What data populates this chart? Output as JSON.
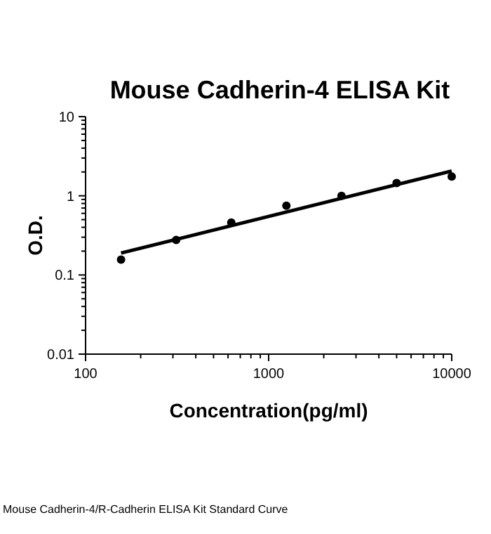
{
  "chart_data": {
    "type": "scatter",
    "title": "Mouse Cadherin-4 ELISA Kit",
    "xlabel": "Concentration(pg/ml)",
    "ylabel": "O.D.",
    "log": "xy",
    "grid": false,
    "marker": "circle",
    "xlim": [
      100,
      10000
    ],
    "ylim": [
      0.01,
      10
    ],
    "xticks": [
      100,
      {
        "value": 200,
        "label": null
      },
      {
        "value": 300,
        "label": null
      },
      {
        "value": 400,
        "label": null
      },
      {
        "value": 500,
        "label": null
      },
      {
        "value": 600,
        "label": null
      },
      {
        "value": 700,
        "label": null
      },
      {
        "value": 800,
        "label": null
      },
      {
        "value": 900,
        "label": null
      },
      1000,
      {
        "value": 2000,
        "label": null
      },
      {
        "value": 3000,
        "label": null
      },
      {
        "value": 4000,
        "label": null
      },
      {
        "value": 5000,
        "label": null
      },
      {
        "value": 6000,
        "label": null
      },
      {
        "value": 7000,
        "label": null
      },
      {
        "value": 8000,
        "label": null
      },
      {
        "value": 9000,
        "label": null
      },
      10000
    ],
    "yticks": [
      0.01,
      {
        "value": 0.02,
        "label": null
      },
      {
        "value": 0.03,
        "label": null
      },
      {
        "value": 0.04,
        "label": null
      },
      {
        "value": 0.05,
        "label": null
      },
      {
        "value": 0.06,
        "label": null
      },
      {
        "value": 0.07,
        "label": null
      },
      {
        "value": 0.08,
        "label": null
      },
      {
        "value": 0.09,
        "label": null
      },
      0.1,
      {
        "value": 0.2,
        "label": null
      },
      {
        "value": 0.3,
        "label": null
      },
      {
        "value": 0.4,
        "label": null
      },
      {
        "value": 0.5,
        "label": null
      },
      {
        "value": 0.6,
        "label": null
      },
      {
        "value": 0.7,
        "label": null
      },
      {
        "value": 0.8,
        "label": null
      },
      {
        "value": 0.9,
        "label": null
      },
      1,
      {
        "value": 2,
        "label": null
      },
      {
        "value": 3,
        "label": null
      },
      {
        "value": 4,
        "label": null
      },
      {
        "value": 5,
        "label": null
      },
      {
        "value": 6,
        "label": null
      },
      {
        "value": 7,
        "label": null
      },
      {
        "value": 8,
        "label": null
      },
      {
        "value": 9,
        "label": null
      },
      10
    ],
    "series": [
      {
        "type": "scatter",
        "color": "#000000",
        "x": [
          156.25,
          312.5,
          625,
          1250,
          2500,
          5000,
          10000
        ],
        "values": [
          0.156,
          0.277,
          0.459,
          0.75,
          1.0,
          1.45,
          1.75
        ]
      },
      {
        "type": "line",
        "color": "#000000",
        "marker": "none",
        "line_style": "solid",
        "x": [
          156.25,
          10000
        ],
        "values": [
          0.189,
          2.06
        ]
      }
    ],
    "annotations": [
      "Mouse Cadherin-4/R-Cadherin ELISA Kit Standard Curve"
    ]
  }
}
